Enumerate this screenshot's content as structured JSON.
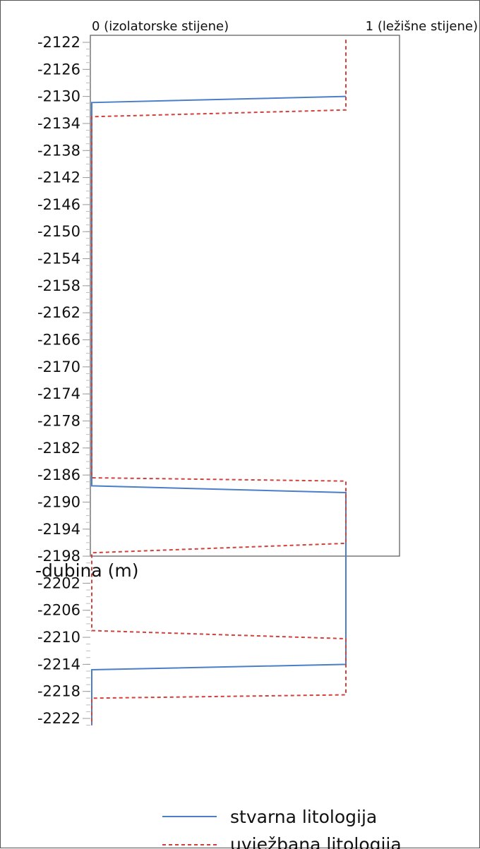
{
  "chart_data": {
    "type": "line",
    "orientation": "depth-log",
    "title": "",
    "xlabel_left": "0 (izolatorske stijene)",
    "xlabel_right": "1 (ležišne stijene)",
    "ylabel": "-dubina (m)",
    "xlim": [
      0,
      1
    ],
    "ylim": [
      -2223,
      -2120
    ],
    "yticks": [
      -2122,
      -2126,
      -2130,
      -2134,
      -2138,
      -2142,
      -2146,
      -2150,
      -2154,
      -2158,
      -2162,
      -2166,
      -2170,
      -2174,
      -2178,
      -2182,
      -2186,
      -2190,
      -2194,
      -2198,
      -2202,
      -2206,
      -2210,
      -2214,
      -2218,
      -2222
    ],
    "yticklabels": [
      "-2122",
      "-2126",
      "-2130",
      "-2134",
      "-2138",
      "-2142",
      "-2146",
      "-2150",
      "-2154",
      "-2158",
      "-2162",
      "-2166",
      "-2170",
      "-2174",
      "-2178",
      "-2182",
      "-2186",
      "-2190",
      "-2194",
      "-2198",
      "-2202",
      "-2206",
      "-2210",
      "-2214",
      "-2218",
      "-2222"
    ],
    "legend_position": "bottom",
    "series": [
      {
        "name": "stvarna litologija",
        "color": "#4a7fc8",
        "style": "solid",
        "points": [
          [
            1,
            -2130
          ],
          [
            0,
            -2130.9
          ],
          [
            0,
            -2187.6
          ],
          [
            1,
            -2188.6
          ],
          [
            1,
            -2214
          ],
          [
            0,
            -2214.8
          ],
          [
            0,
            -2223
          ]
        ]
      },
      {
        "name": "uvježbana litologija",
        "color": "#d0403c",
        "style": "dashed",
        "points": [
          [
            1,
            -2121.6
          ],
          [
            1,
            -2132
          ],
          [
            0,
            -2133
          ],
          [
            0,
            -2186.4
          ],
          [
            1,
            -2186.9
          ],
          [
            1,
            -2196.1
          ],
          [
            0,
            -2197.5
          ],
          [
            0,
            -2209
          ],
          [
            1,
            -2210.2
          ],
          [
            1,
            -2218.5
          ],
          [
            0,
            -2219
          ],
          [
            0,
            -2223
          ]
        ]
      }
    ]
  }
}
